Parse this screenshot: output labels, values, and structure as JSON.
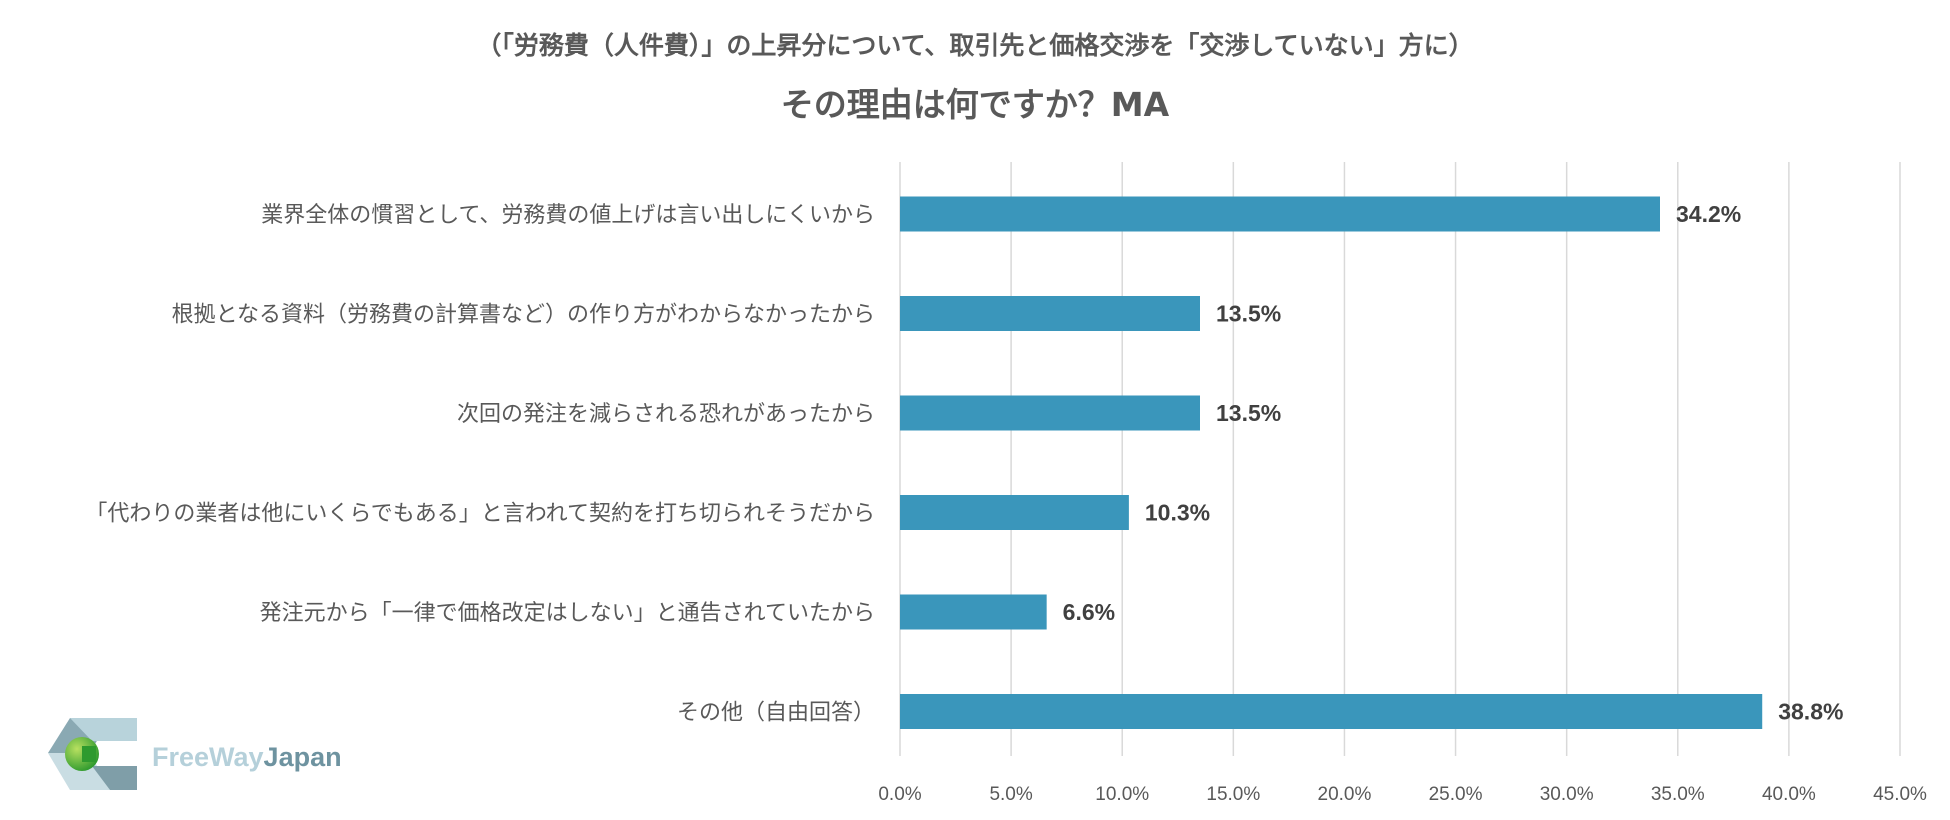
{
  "chart_data": {
    "type": "bar",
    "orientation": "horizontal",
    "title_line1": "（「労務費（人件費）」の上昇分について、取引先と価格交渉を「交渉していない」方に）",
    "title_line2": "その理由は何ですか？MA",
    "categories": [
      "業界全体の慣習として、労務費の値上げは言い出しにくいから",
      "根拠となる資料（労務費の計算書など）の作り方がわからなかったから",
      "次回の発注を減らされる恐れがあったから",
      "「代わりの業者は他にいくらでもある」と言われて契約を打ち切られそうだから",
      "発注元から「一律で価格改定はしない」と通告されていたから",
      "その他（自由回答）"
    ],
    "values": [
      34.2,
      13.5,
      13.5,
      10.3,
      6.6,
      38.8
    ],
    "value_labels": [
      "34.2%",
      "13.5%",
      "13.5%",
      "10.3%",
      "6.6%",
      "38.8%"
    ],
    "xlim": [
      0,
      45
    ],
    "xticks": [
      0,
      5,
      10,
      15,
      20,
      25,
      30,
      35,
      40,
      45
    ],
    "xtick_labels": [
      "0.0%",
      "5.0%",
      "10.0%",
      "15.0%",
      "20.0%",
      "25.0%",
      "30.0%",
      "35.0%",
      "40.0%",
      "45.0%"
    ],
    "grid": "vertical",
    "bar_color": "#3a96bb"
  },
  "logo": {
    "text_part1": "FreeWay",
    "text_part2": "Japan"
  }
}
